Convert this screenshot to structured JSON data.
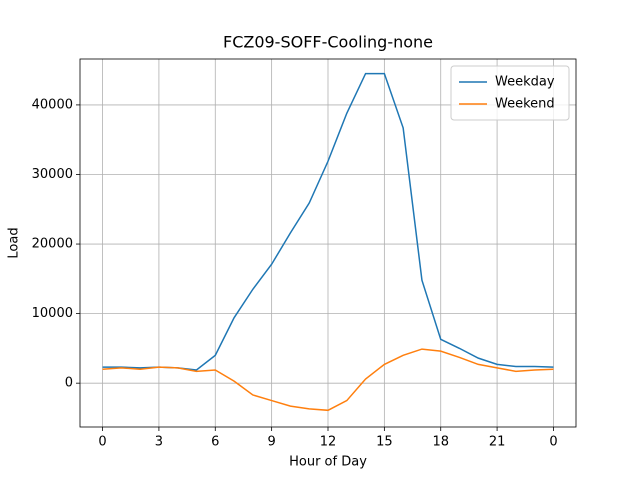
{
  "chart_data": {
    "type": "line",
    "title": "FCZ09-SOFF-Cooling-none",
    "x_label": "Hour of Day",
    "y_label": "Load",
    "x": [
      0,
      1,
      2,
      3,
      4,
      5,
      6,
      7,
      8,
      9,
      10,
      11,
      12,
      13,
      14,
      15,
      16,
      17,
      18,
      19,
      20,
      21,
      22,
      23,
      24
    ],
    "series": [
      {
        "name": "Weekday",
        "color": "#1f77b4",
        "values": [
          2300,
          2300,
          2200,
          2300,
          2200,
          1900,
          4000,
          9400,
          13500,
          17100,
          21600,
          25900,
          31900,
          38800,
          44500,
          44500,
          36700,
          14800,
          6300,
          5000,
          3600,
          2700,
          2400,
          2400,
          2300
        ]
      },
      {
        "name": "Weekend",
        "color": "#ff7f0e",
        "values": [
          2000,
          2200,
          2000,
          2300,
          2200,
          1700,
          1900,
          300,
          -1700,
          -2500,
          -3300,
          -3700,
          -3900,
          -2500,
          600,
          2700,
          4000,
          4900,
          4600,
          3700,
          2700,
          2200,
          1700,
          1900,
          2000
        ]
      }
    ],
    "xlim": [
      -1.2,
      25.2
    ],
    "ylim": [
      -6300,
      46600
    ],
    "xticks": [
      0,
      3,
      6,
      9,
      12,
      15,
      18,
      21,
      {
        "value": 24,
        "label": "0"
      }
    ],
    "yticks": [
      0,
      10000,
      20000,
      30000,
      40000
    ],
    "grid": true,
    "legend": "upper-right"
  }
}
